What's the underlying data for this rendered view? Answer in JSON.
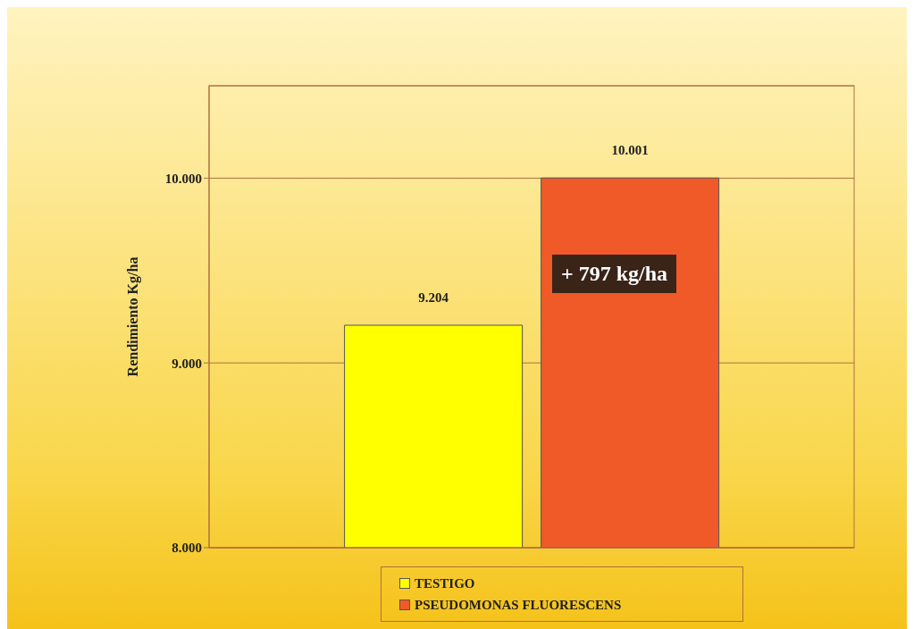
{
  "chart_data": {
    "type": "bar",
    "ylabel": "Rendimiento Kg/ha",
    "categories": [
      null
    ],
    "series": [
      {
        "name": "TESTIGO",
        "color": "#ffff00",
        "values": [
          9204
        ],
        "value_labels": [
          "9.204"
        ]
      },
      {
        "name": "PSEUDOMONAS FLUORESCENS",
        "color": "#f05a28",
        "values": [
          10001
        ],
        "value_labels": [
          "10.001"
        ]
      }
    ],
    "ylim": [
      8000,
      10500
    ],
    "yticks": [
      {
        "value": 8000,
        "label": "8.000"
      },
      {
        "value": 9000,
        "label": "9.000"
      },
      {
        "value": 10000,
        "label": "10.000"
      }
    ],
    "grid": "y",
    "legend": "bottom",
    "annotations": [
      "+ 797 kg/ha"
    ]
  }
}
